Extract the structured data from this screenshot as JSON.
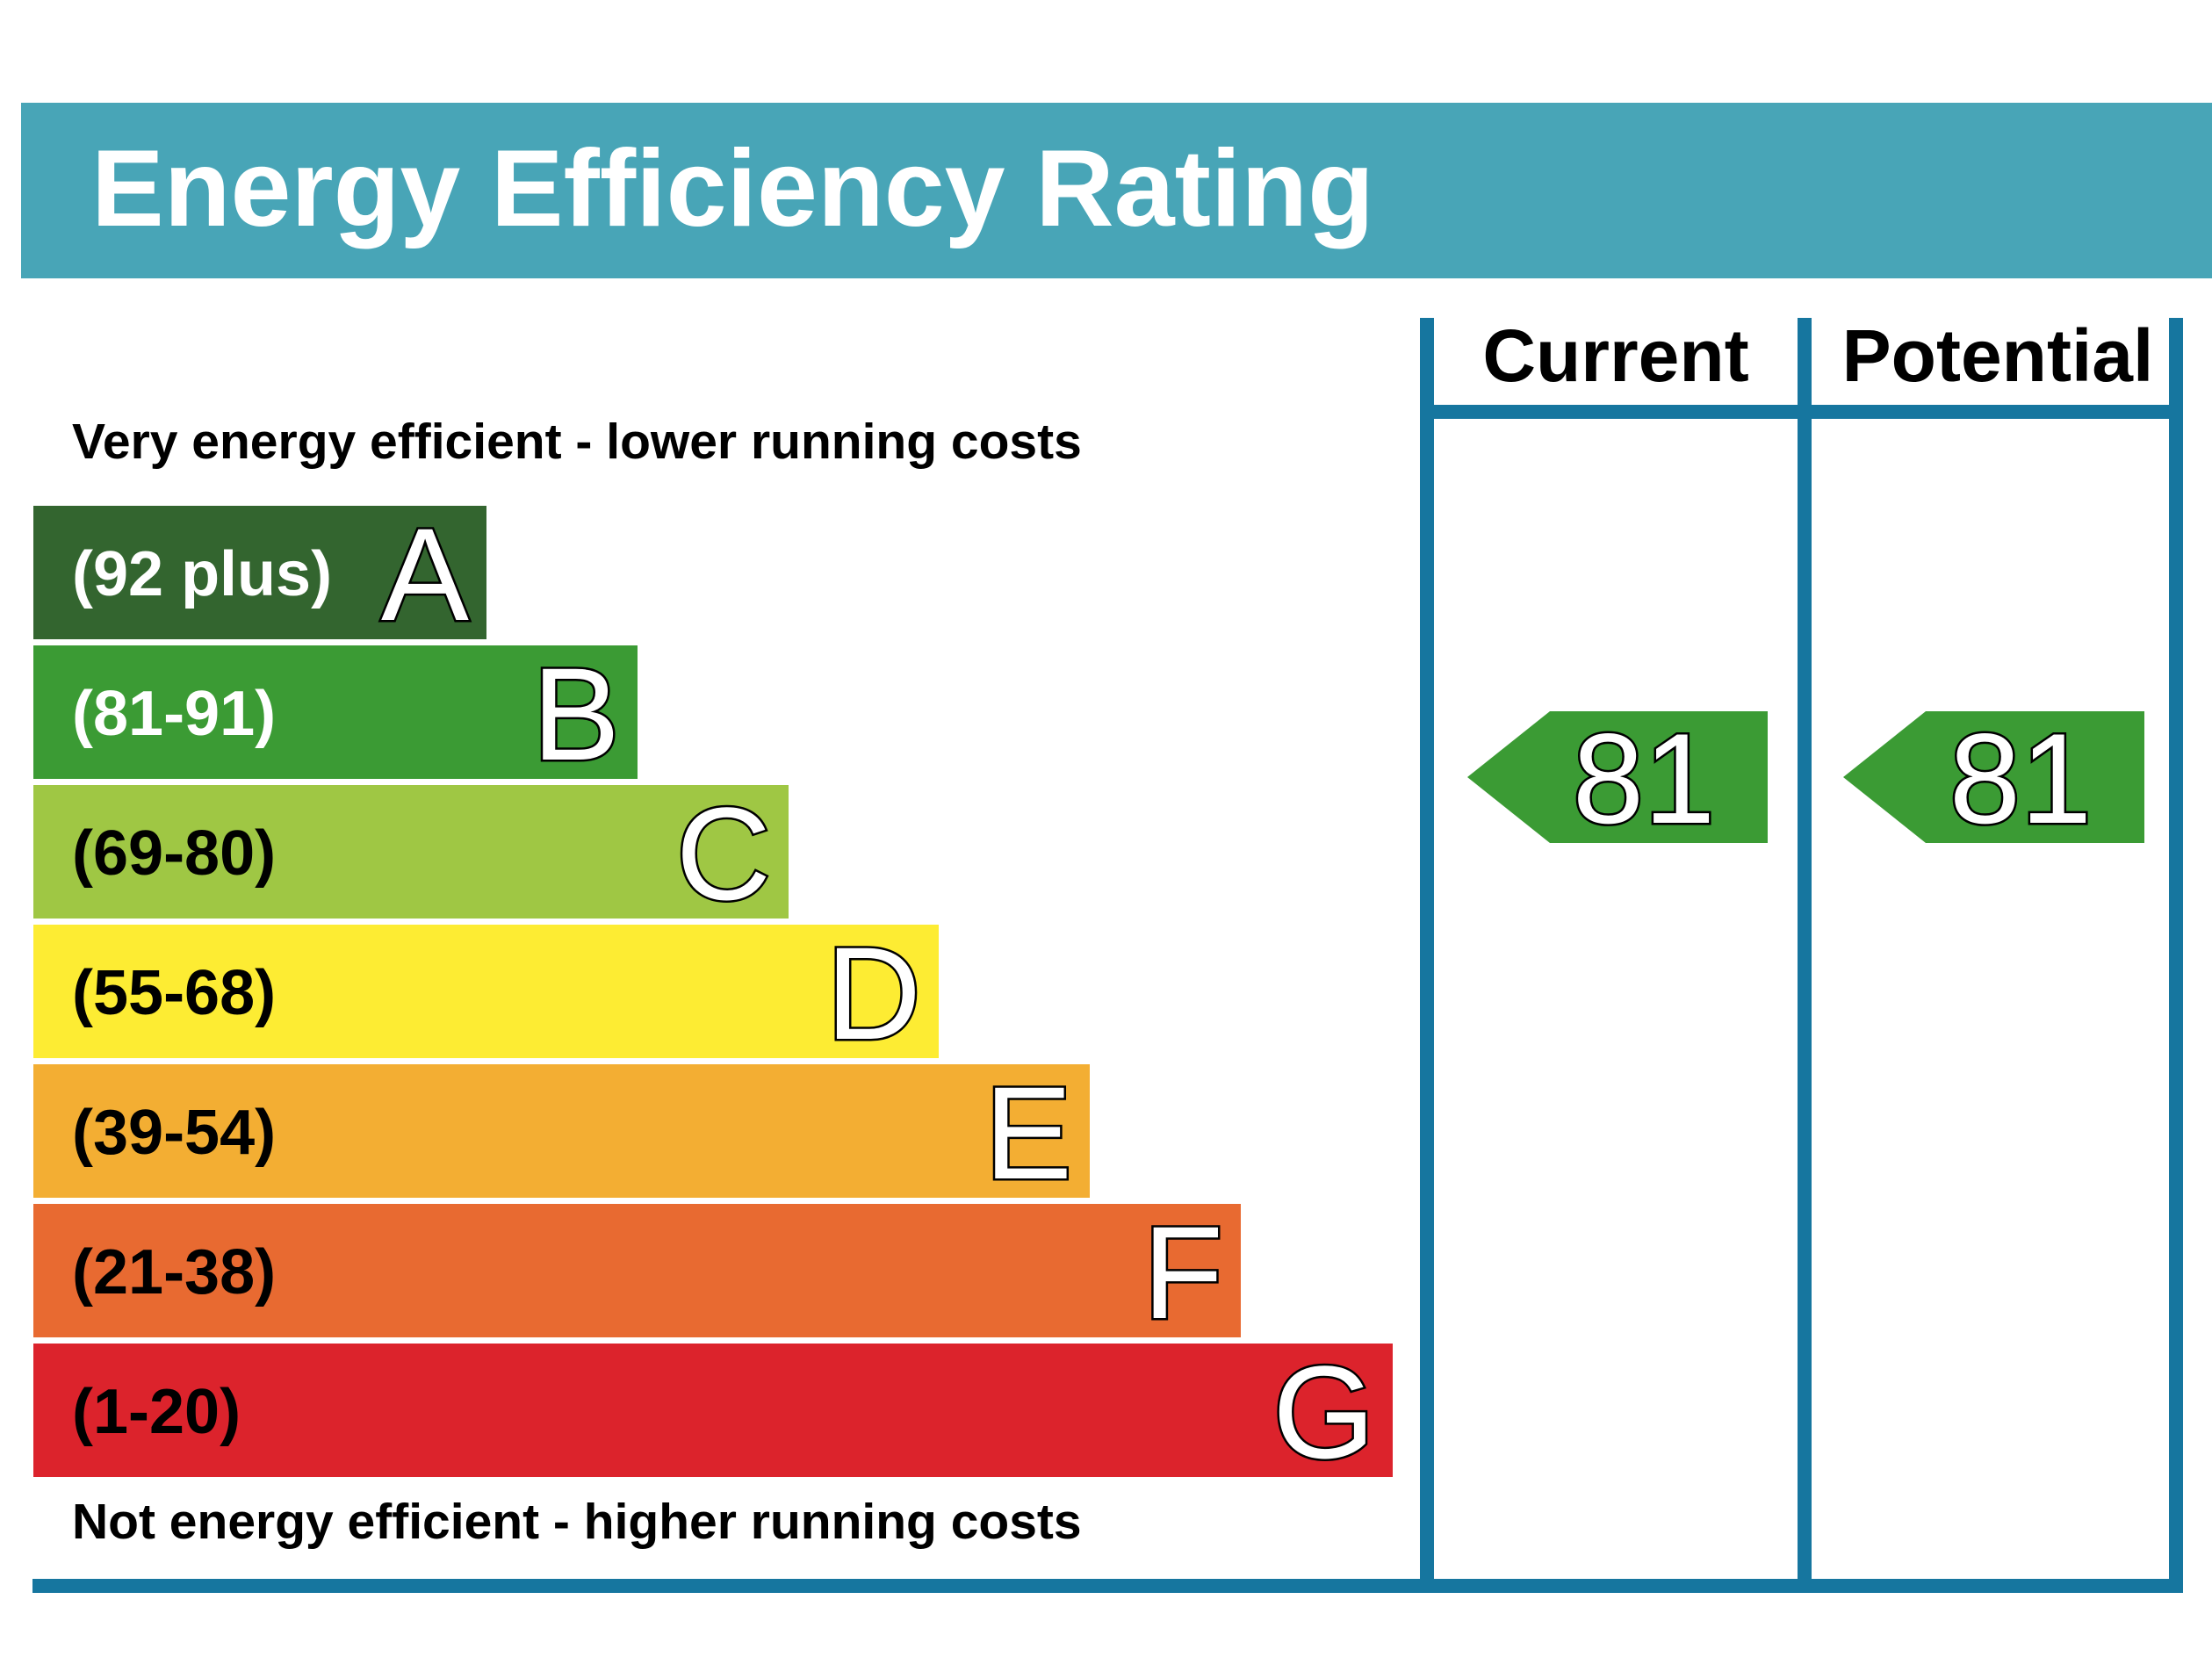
{
  "title": "Energy Efficiency Rating",
  "columns": {
    "current_label": "Current",
    "potential_label": "Potential"
  },
  "captions": {
    "top": "Very energy efficient - lower running costs",
    "bottom": "Not energy efficient - higher running costs"
  },
  "bands": [
    {
      "letter": "A",
      "range": "(92 plus)",
      "color": "#33652f",
      "text_color": "#ffffff"
    },
    {
      "letter": "B",
      "range": "(81-91)",
      "color": "#3b9b34",
      "text_color": "#ffffff"
    },
    {
      "letter": "C",
      "range": "(69-80)",
      "color": "#9fc744",
      "text_color": "#000000"
    },
    {
      "letter": "D",
      "range": "(55-68)",
      "color": "#fdec33",
      "text_color": "#000000"
    },
    {
      "letter": "E",
      "range": "(39-54)",
      "color": "#f3ae33",
      "text_color": "#000000"
    },
    {
      "letter": "F",
      "range": "(21-38)",
      "color": "#e86a31",
      "text_color": "#000000"
    },
    {
      "letter": "G",
      "range": "(1-20)",
      "color": "#dc232c",
      "text_color": "#000000"
    }
  ],
  "ratings": {
    "current": {
      "value": "81",
      "band": "B"
    },
    "potential": {
      "value": "81",
      "band": "B"
    }
  },
  "colors": {
    "header_bar": "#48a5b7",
    "frame": "#16769f"
  }
}
